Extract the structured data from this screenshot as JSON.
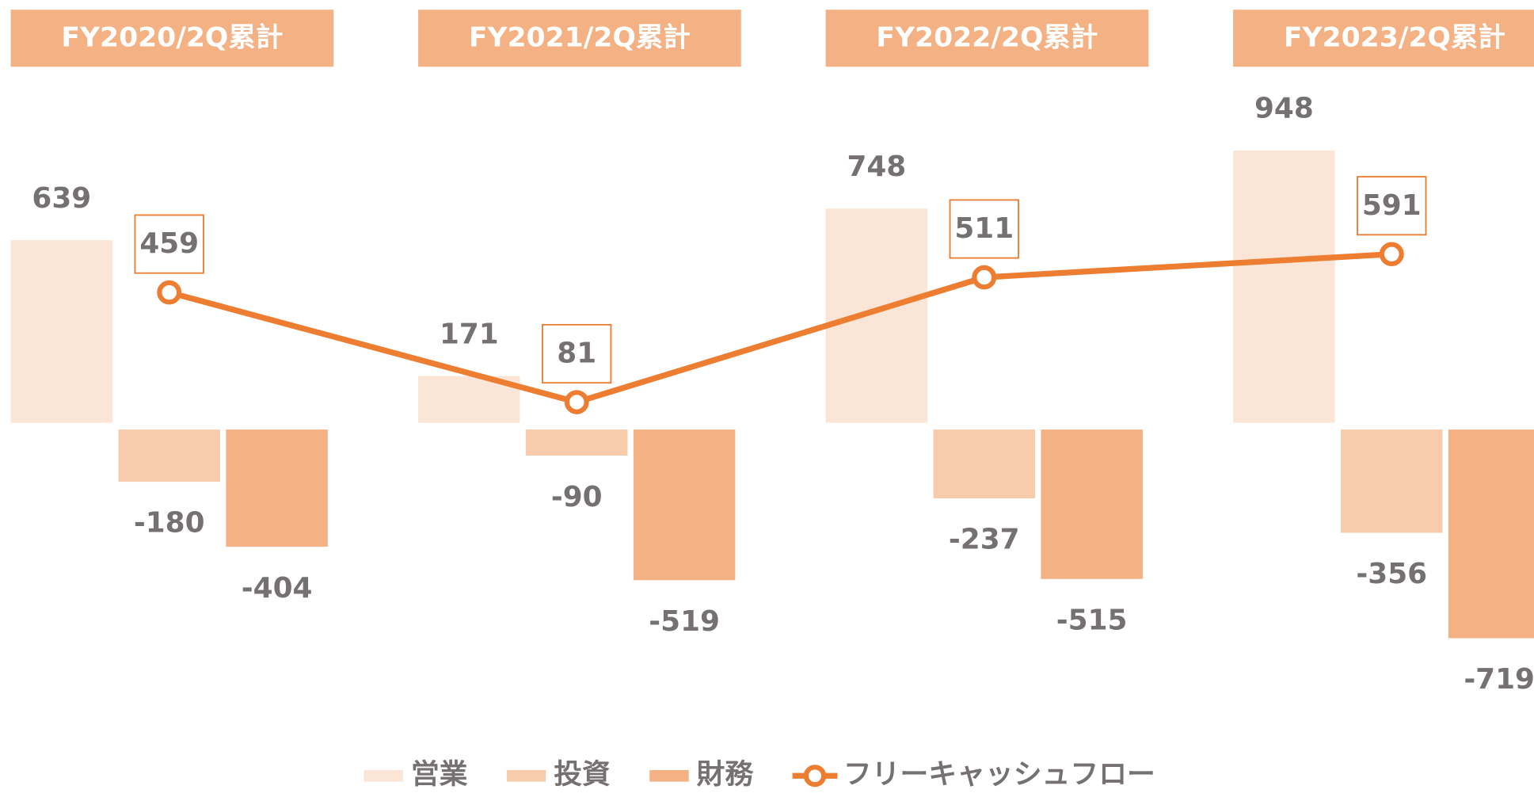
{
  "chart_data": {
    "type": "bar_line",
    "categories": [
      "FY2020/2Q累計",
      "FY2021/2Q累計",
      "FY2022/2Q累計",
      "FY2023/2Q累計"
    ],
    "series": [
      {
        "name": "営業",
        "color": "#fbe5d6",
        "type": "bar",
        "values": [
          639,
          171,
          748,
          948
        ]
      },
      {
        "name": "投資",
        "color": "#f8cbad",
        "type": "bar",
        "values": [
          -180,
          -90,
          -237,
          -356
        ]
      },
      {
        "name": "財務",
        "color": "#f4b183",
        "type": "bar",
        "values": [
          -404,
          -519,
          -515,
          -719
        ]
      },
      {
        "name": "フリーキャッシュフロー",
        "color": "#ed7d31",
        "type": "line",
        "values": [
          459,
          81,
          511,
          591
        ]
      }
    ],
    "ylim": [
      -1100,
      1200
    ]
  }
}
